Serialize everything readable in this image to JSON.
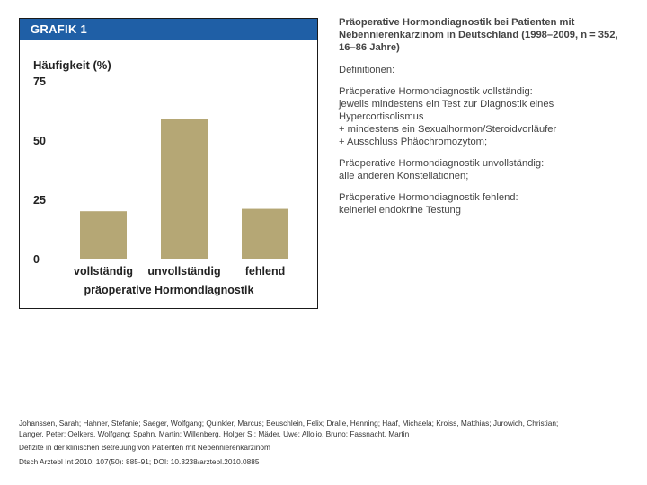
{
  "figure": {
    "label": "GRAFIK 1"
  },
  "chart_data": {
    "type": "bar",
    "title": "",
    "ylabel": "Häufigkeit (%)",
    "xlabel": "präoperative Hormondiagnostik",
    "categories": [
      "vollständig",
      "unvollständig",
      "fehlend"
    ],
    "values": [
      20,
      59,
      21
    ],
    "ylim": [
      0,
      75
    ],
    "yticks": [
      0,
      25,
      50,
      75
    ],
    "bar_color": "#b5a775",
    "grid": false
  },
  "side": {
    "title_lines": [
      "Präoperative Hormondiagnostik bei Patienten mit",
      "Nebennierenkarzinom in Deutschland (1998–2009, n = 352,",
      "16–86 Jahre)"
    ],
    "definitions_label": "Definitionen:",
    "definitions": [
      {
        "lines": [
          "Präoperative Hormondiagnostik vollständig:",
          "jeweils mindestens ein Test zur Diagnostik eines Hypercortisolismus",
          "+ mindestens ein Sexualhormon/Steroidvorläufer",
          "+ Ausschluss Phäochromozytom;"
        ]
      },
      {
        "lines": [
          "Präoperative Hormondiagnostik unvollständig:",
          "alle anderen Konstellationen;"
        ]
      },
      {
        "lines": [
          "Präoperative Hormondiagnostik fehlend:",
          "keinerlei endokrine Testung"
        ]
      }
    ]
  },
  "footer": {
    "authors_line1": "Johanssen, Sarah; Hahner, Stefanie; Saeger, Wolfgang; Quinkler, Marcus; Beuschlein, Felix; Dralle, Henning; Haaf, Michaela; Kroiss, Matthias; Jurowich, Christian;",
    "authors_line2": "Langer, Peter; Oelkers, Wolfgang; Spahn, Martin; Willenberg, Holger S.; Mäder, Uwe; Allolio, Bruno; Fassnacht, Martin",
    "article_title": "Defizite in der klinischen Betreuung von Patienten mit Nebennierenkarzinom",
    "citation": "Dtsch Arztebl Int 2010; 107(50): 885-91; DOI: 10.3238/arztebl.2010.0885"
  }
}
